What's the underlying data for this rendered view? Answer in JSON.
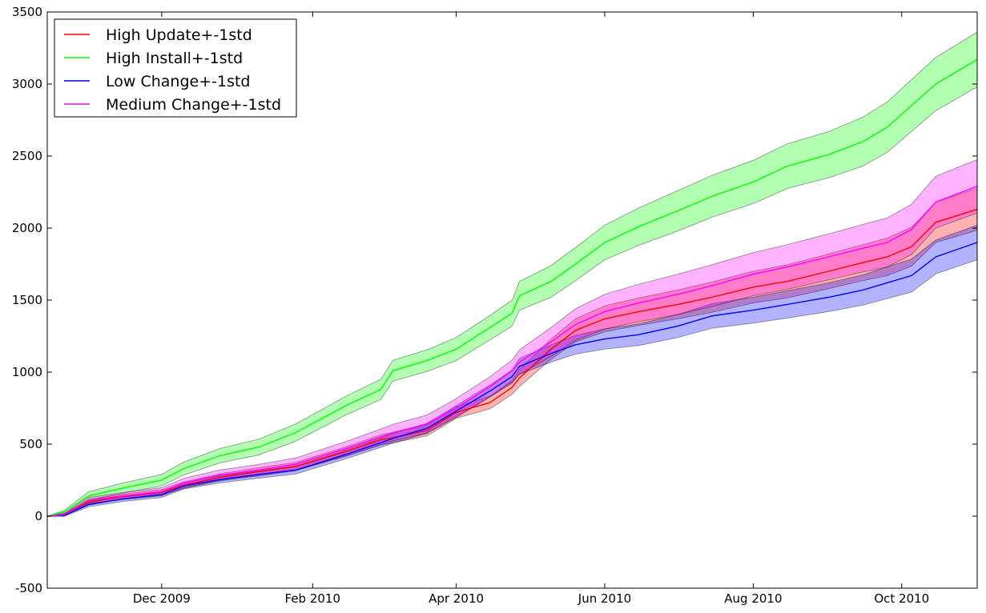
{
  "chart_data": {
    "type": "line",
    "title": "",
    "xlabel": "",
    "ylabel": "",
    "x_axis": {
      "type": "date",
      "range": [
        "2009-10-15",
        "2010-11-01"
      ],
      "ticks": [
        {
          "date": "2009-12-01",
          "label": "Dec 2009"
        },
        {
          "date": "2010-02-01",
          "label": "Feb 2010"
        },
        {
          "date": "2010-04-01",
          "label": "Apr 2010"
        },
        {
          "date": "2010-06-01",
          "label": "Jun 2010"
        },
        {
          "date": "2010-08-01",
          "label": "Aug 2010"
        },
        {
          "date": "2010-10-01",
          "label": "Oct 2010"
        }
      ]
    },
    "y_axis": {
      "range": [
        -500,
        3500
      ],
      "ticks": [
        -500,
        0,
        500,
        1000,
        1500,
        2000,
        2500,
        3000,
        3500
      ]
    },
    "grid": false,
    "legend": "top-left",
    "series": [
      {
        "name": "High Update+-1std",
        "color": "#ff0000",
        "band_color": "#ff0000",
        "x": [
          "2009-10-15",
          "2009-10-22",
          "2009-11-01",
          "2009-11-15",
          "2009-12-01",
          "2009-12-10",
          "2009-12-25",
          "2010-01-10",
          "2010-01-25",
          "2010-02-15",
          "2010-03-01",
          "2010-03-06",
          "2010-03-20",
          "2010-04-01",
          "2010-04-15",
          "2010-04-24",
          "2010-04-27",
          "2010-05-10",
          "2010-05-20",
          "2010-06-01",
          "2010-06-15",
          "2010-07-01",
          "2010-07-15",
          "2010-08-01",
          "2010-08-15",
          "2010-09-01",
          "2010-09-15",
          "2010-09-25",
          "2010-10-05",
          "2010-10-15",
          "2010-11-01"
        ],
        "mean": [
          0,
          10,
          100,
          135,
          165,
          215,
          270,
          310,
          345,
          450,
          530,
          545,
          595,
          720,
          790,
          895,
          960,
          1160,
          1290,
          1370,
          1420,
          1470,
          1520,
          1590,
          1630,
          1700,
          1760,
          1800,
          1870,
          2040,
          2130
        ],
        "std": [
          0,
          6,
          15,
          18,
          20,
          22,
          24,
          26,
          28,
          32,
          35,
          36,
          38,
          40,
          44,
          48,
          60,
          70,
          80,
          90,
          95,
          100,
          105,
          110,
          115,
          120,
          125,
          130,
          135,
          140,
          145
        ]
      },
      {
        "name": "High Install+-1std",
        "color": "#00ff00",
        "band_color": "#00ff00",
        "x": [
          "2009-10-15",
          "2009-10-22",
          "2009-11-01",
          "2009-11-15",
          "2009-12-01",
          "2009-12-10",
          "2009-12-25",
          "2010-01-10",
          "2010-01-25",
          "2010-02-15",
          "2010-03-01",
          "2010-03-06",
          "2010-03-20",
          "2010-04-01",
          "2010-04-15",
          "2010-04-24",
          "2010-04-27",
          "2010-05-10",
          "2010-05-20",
          "2010-06-01",
          "2010-06-15",
          "2010-07-01",
          "2010-07-15",
          "2010-08-01",
          "2010-08-15",
          "2010-09-01",
          "2010-09-15",
          "2010-09-25",
          "2010-10-05",
          "2010-10-15",
          "2010-11-01"
        ],
        "mean": [
          0,
          30,
          140,
          195,
          250,
          330,
          420,
          480,
          580,
          770,
          880,
          1010,
          1080,
          1160,
          1310,
          1410,
          1530,
          1630,
          1750,
          1900,
          2010,
          2120,
          2220,
          2320,
          2430,
          2510,
          2600,
          2700,
          2850,
          3000,
          3170
        ],
        "std": [
          0,
          10,
          30,
          35,
          40,
          45,
          50,
          55,
          60,
          65,
          70,
          72,
          75,
          80,
          85,
          90,
          100,
          110,
          115,
          120,
          130,
          140,
          145,
          150,
          155,
          160,
          170,
          175,
          180,
          185,
          190
        ]
      },
      {
        "name": "Low Change+-1std",
        "color": "#0000ff",
        "band_color": "#0000ff",
        "x": [
          "2009-10-15",
          "2009-10-22",
          "2009-11-01",
          "2009-11-15",
          "2009-12-01",
          "2009-12-10",
          "2009-12-25",
          "2010-01-10",
          "2010-01-25",
          "2010-02-15",
          "2010-03-01",
          "2010-03-06",
          "2010-03-20",
          "2010-04-01",
          "2010-04-15",
          "2010-04-24",
          "2010-04-27",
          "2010-05-10",
          "2010-05-20",
          "2010-06-01",
          "2010-06-15",
          "2010-07-01",
          "2010-07-15",
          "2010-08-01",
          "2010-08-15",
          "2010-09-01",
          "2010-09-15",
          "2010-09-25",
          "2010-10-05",
          "2010-10-15",
          "2010-11-01"
        ],
        "mean": [
          0,
          5,
          80,
          120,
          150,
          210,
          255,
          290,
          320,
          430,
          510,
          540,
          610,
          730,
          870,
          970,
          1040,
          1130,
          1190,
          1230,
          1260,
          1320,
          1390,
          1430,
          1470,
          1520,
          1570,
          1620,
          1670,
          1800,
          1900
        ],
        "std": [
          0,
          6,
          15,
          18,
          20,
          22,
          24,
          26,
          28,
          30,
          32,
          33,
          35,
          38,
          42,
          46,
          55,
          60,
          65,
          70,
          75,
          80,
          85,
          90,
          95,
          100,
          105,
          110,
          115,
          118,
          120
        ]
      },
      {
        "name": "Medium Change+-1std",
        "color": "#ff00ff",
        "band_color": "#ff00ff",
        "x": [
          "2009-10-15",
          "2009-10-22",
          "2009-11-01",
          "2009-11-15",
          "2009-12-01",
          "2009-12-10",
          "2009-12-25",
          "2010-01-10",
          "2010-01-25",
          "2010-02-15",
          "2010-03-01",
          "2010-03-06",
          "2010-03-20",
          "2010-04-01",
          "2010-04-15",
          "2010-04-24",
          "2010-04-27",
          "2010-05-10",
          "2010-05-20",
          "2010-06-01",
          "2010-06-15",
          "2010-07-01",
          "2010-07-15",
          "2010-08-01",
          "2010-08-15",
          "2010-09-01",
          "2010-09-15",
          "2010-09-25",
          "2010-10-05",
          "2010-10-15",
          "2010-11-01"
        ],
        "mean": [
          0,
          10,
          110,
          140,
          170,
          230,
          285,
          320,
          360,
          470,
          550,
          580,
          640,
          750,
          900,
          1010,
          1070,
          1210,
          1330,
          1420,
          1480,
          1540,
          1600,
          1680,
          1730,
          1800,
          1860,
          1900,
          1990,
          2180,
          2290
        ],
        "std": [
          0,
          8,
          20,
          24,
          28,
          32,
          36,
          40,
          44,
          50,
          55,
          58,
          62,
          66,
          70,
          75,
          85,
          100,
          110,
          120,
          130,
          140,
          145,
          150,
          155,
          160,
          165,
          170,
          175,
          180,
          185
        ]
      }
    ]
  }
}
